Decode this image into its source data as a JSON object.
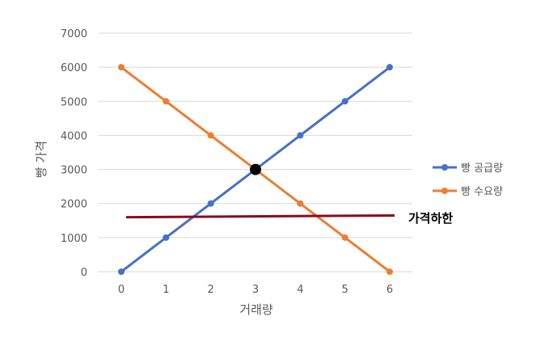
{
  "chart_data": {
    "type": "line",
    "title": "",
    "xlabel": "거래량",
    "ylabel": "빵 가격",
    "x": [
      0,
      1,
      2,
      3,
      4,
      5,
      6
    ],
    "x_ticks": [
      "0",
      "1",
      "2",
      "3",
      "4",
      "5",
      "6"
    ],
    "y_ticks": [
      "0",
      "1000",
      "2000",
      "3000",
      "4000",
      "5000",
      "6000",
      "7000"
    ],
    "xlim": [
      0,
      6
    ],
    "ylim": [
      0,
      7000
    ],
    "grid": true,
    "legend_position": "right",
    "series": [
      {
        "name": "빵 공급량",
        "color": "#4472C4",
        "values": [
          0,
          1000,
          2000,
          3000,
          4000,
          5000,
          6000
        ]
      },
      {
        "name": "빵 수요량",
        "color": "#ED7D31",
        "values": [
          6000,
          5000,
          4000,
          3000,
          2000,
          1000,
          0
        ]
      }
    ],
    "annotations": {
      "equilibrium_point": {
        "x": 3,
        "y": 3000,
        "color": "#000000"
      },
      "price_floor": {
        "label": "가격하한",
        "y_start": 1600,
        "y_end": 1650,
        "color": "#8B0A1A"
      }
    }
  }
}
